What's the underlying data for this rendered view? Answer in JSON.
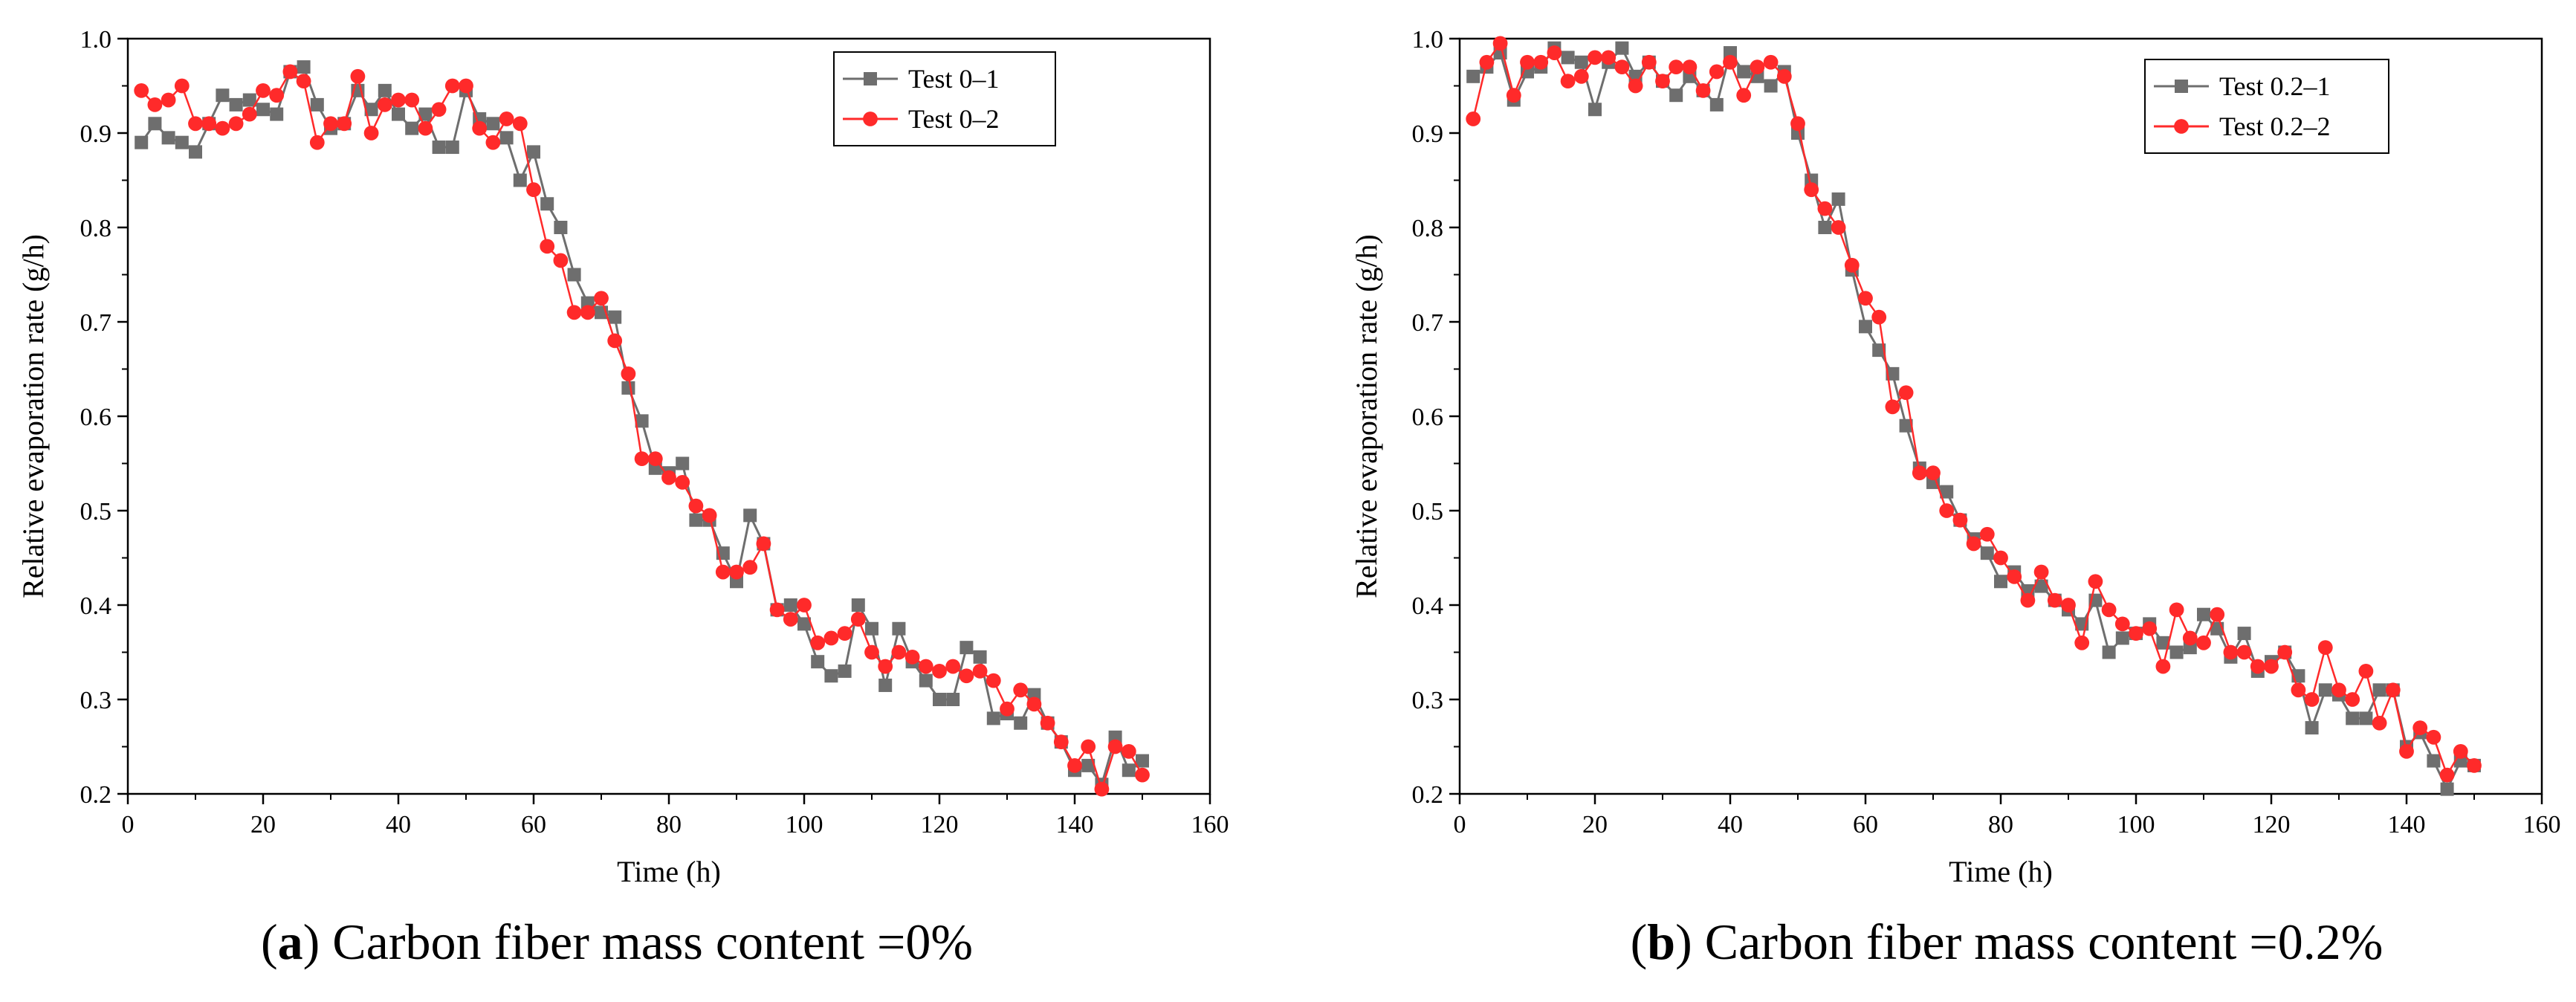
{
  "colors": {
    "series_gray": "#6e6e6e",
    "series_red": "#ff2a2a",
    "axis": "#000000"
  },
  "chart_data": [
    {
      "type": "line",
      "panel_letter": "a",
      "caption_open": "(",
      "caption_close": ") Carbon fiber mass content =0%",
      "xlabel": "Time (h)",
      "ylabel": "Relative evaporation rate (g/h)",
      "xlim": [
        0,
        160
      ],
      "ylim": [
        0.2,
        1.0
      ],
      "xticks": [
        "0",
        "20",
        "40",
        "60",
        "80",
        "100",
        "120",
        "140",
        "160"
      ],
      "yticks": [
        "0.2",
        "0.3",
        "0.4",
        "0.5",
        "0.6",
        "0.7",
        "0.8",
        "0.9",
        "1.0"
      ],
      "legend_position": "top-right",
      "series": [
        {
          "name": "Test 0–1",
          "marker": "square",
          "color": "#6e6e6e",
          "x": [
            2,
            4,
            6,
            8,
            10,
            12,
            14,
            16,
            18,
            20,
            22,
            24,
            26,
            28,
            30,
            32,
            34,
            36,
            38,
            40,
            42,
            44,
            46,
            48,
            50,
            52,
            54,
            56,
            58,
            60,
            62,
            64,
            66,
            68,
            70,
            72,
            74,
            76,
            78,
            80,
            82,
            84,
            86,
            88,
            90,
            92,
            94,
            96,
            98,
            100,
            102,
            104,
            106,
            108,
            110,
            112,
            114,
            116,
            118,
            120,
            122,
            124,
            126,
            128,
            130,
            132,
            134,
            136,
            138,
            140,
            142,
            144,
            146,
            148,
            150
          ],
          "y": [
            0.89,
            0.91,
            0.895,
            0.89,
            0.88,
            0.91,
            0.94,
            0.93,
            0.935,
            0.925,
            0.92,
            0.965,
            0.97,
            0.93,
            0.905,
            0.91,
            0.945,
            0.925,
            0.945,
            0.92,
            0.905,
            0.92,
            0.885,
            0.885,
            0.945,
            0.915,
            0.91,
            0.895,
            0.85,
            0.88,
            0.825,
            0.8,
            0.75,
            0.72,
            0.71,
            0.705,
            0.63,
            0.595,
            0.545,
            0.54,
            0.55,
            0.49,
            0.49,
            0.455,
            0.425,
            0.495,
            0.465,
            0.395,
            0.4,
            0.38,
            0.34,
            0.325,
            0.33,
            0.4,
            0.375,
            0.315,
            0.375,
            0.34,
            0.32,
            0.3,
            0.3,
            0.355,
            0.345,
            0.28,
            0.285,
            0.275,
            0.305,
            0.275,
            0.255,
            0.225,
            0.23,
            0.21,
            0.26,
            0.225,
            0.235
          ]
        },
        {
          "name": "Test 0–2",
          "marker": "circle",
          "color": "#ff2a2a",
          "x": [
            2,
            4,
            6,
            8,
            10,
            12,
            14,
            16,
            18,
            20,
            22,
            24,
            26,
            28,
            30,
            32,
            34,
            36,
            38,
            40,
            42,
            44,
            46,
            48,
            50,
            52,
            54,
            56,
            58,
            60,
            62,
            64,
            66,
            68,
            70,
            72,
            74,
            76,
            78,
            80,
            82,
            84,
            86,
            88,
            90,
            92,
            94,
            96,
            98,
            100,
            102,
            104,
            106,
            108,
            110,
            112,
            114,
            116,
            118,
            120,
            122,
            124,
            126,
            128,
            130,
            132,
            134,
            136,
            138,
            140,
            142,
            144,
            146,
            148,
            150
          ],
          "y": [
            0.945,
            0.93,
            0.935,
            0.95,
            0.91,
            0.91,
            0.905,
            0.91,
            0.92,
            0.945,
            0.94,
            0.965,
            0.955,
            0.89,
            0.91,
            0.91,
            0.96,
            0.9,
            0.93,
            0.935,
            0.935,
            0.905,
            0.925,
            0.95,
            0.95,
            0.905,
            0.89,
            0.915,
            0.91,
            0.84,
            0.78,
            0.765,
            0.71,
            0.71,
            0.725,
            0.68,
            0.645,
            0.555,
            0.555,
            0.535,
            0.53,
            0.505,
            0.495,
            0.435,
            0.435,
            0.44,
            0.465,
            0.395,
            0.385,
            0.4,
            0.36,
            0.365,
            0.37,
            0.385,
            0.35,
            0.335,
            0.35,
            0.345,
            0.335,
            0.33,
            0.335,
            0.325,
            0.33,
            0.32,
            0.29,
            0.31,
            0.295,
            0.275,
            0.255,
            0.23,
            0.25,
            0.205,
            0.25,
            0.245,
            0.22
          ]
        }
      ]
    },
    {
      "type": "line",
      "panel_letter": "b",
      "caption_open": "(",
      "caption_close": ") Carbon fiber mass content =0.2%",
      "xlabel": "Time (h)",
      "ylabel": "Relative evaporation rate (g/h)",
      "xlim": [
        0,
        160
      ],
      "ylim": [
        0.2,
        1.0
      ],
      "xticks": [
        "0",
        "20",
        "40",
        "60",
        "80",
        "100",
        "120",
        "140",
        "160"
      ],
      "yticks": [
        "0.2",
        "0.3",
        "0.4",
        "0.5",
        "0.6",
        "0.7",
        "0.8",
        "0.9",
        "1.0"
      ],
      "legend_position": "top-right",
      "series": [
        {
          "name": "Test 0.2–1",
          "marker": "square",
          "color": "#6e6e6e",
          "x": [
            2,
            4,
            6,
            8,
            10,
            12,
            14,
            16,
            18,
            20,
            22,
            24,
            26,
            28,
            30,
            32,
            34,
            36,
            38,
            40,
            42,
            44,
            46,
            48,
            50,
            52,
            54,
            56,
            58,
            60,
            62,
            64,
            66,
            68,
            70,
            72,
            74,
            76,
            78,
            80,
            82,
            84,
            86,
            88,
            90,
            92,
            94,
            96,
            98,
            100,
            102,
            104,
            106,
            108,
            110,
            112,
            114,
            116,
            118,
            120,
            122,
            124,
            126,
            128,
            130,
            132,
            134,
            136,
            138,
            140,
            142,
            144,
            146,
            148,
            150
          ],
          "y": [
            0.96,
            0.97,
            0.985,
            0.935,
            0.965,
            0.97,
            0.99,
            0.98,
            0.975,
            0.925,
            0.975,
            0.99,
            0.96,
            0.975,
            0.955,
            0.94,
            0.96,
            0.945,
            0.93,
            0.985,
            0.965,
            0.96,
            0.95,
            0.965,
            0.9,
            0.85,
            0.8,
            0.83,
            0.755,
            0.695,
            0.67,
            0.645,
            0.59,
            0.545,
            0.53,
            0.52,
            0.49,
            0.47,
            0.455,
            0.425,
            0.435,
            0.415,
            0.42,
            0.405,
            0.395,
            0.38,
            0.405,
            0.35,
            0.365,
            0.37,
            0.38,
            0.36,
            0.35,
            0.355,
            0.39,
            0.375,
            0.345,
            0.37,
            0.33,
            0.34,
            0.35,
            0.325,
            0.27,
            0.31,
            0.305,
            0.28,
            0.28,
            0.31,
            0.31,
            0.25,
            0.265,
            0.235,
            0.205,
            0.235,
            0.23
          ]
        },
        {
          "name": "Test 0.2–2",
          "marker": "circle",
          "color": "#ff2a2a",
          "x": [
            2,
            4,
            6,
            8,
            10,
            12,
            14,
            16,
            18,
            20,
            22,
            24,
            26,
            28,
            30,
            32,
            34,
            36,
            38,
            40,
            42,
            44,
            46,
            48,
            50,
            52,
            54,
            56,
            58,
            60,
            62,
            64,
            66,
            68,
            70,
            72,
            74,
            76,
            78,
            80,
            82,
            84,
            86,
            88,
            90,
            92,
            94,
            96,
            98,
            100,
            102,
            104,
            106,
            108,
            110,
            112,
            114,
            116,
            118,
            120,
            122,
            124,
            126,
            128,
            130,
            132,
            134,
            136,
            138,
            140,
            142,
            144,
            146,
            148,
            150
          ],
          "y": [
            0.915,
            0.975,
            0.995,
            0.94,
            0.975,
            0.975,
            0.985,
            0.955,
            0.96,
            0.98,
            0.98,
            0.97,
            0.95,
            0.975,
            0.955,
            0.97,
            0.97,
            0.945,
            0.965,
            0.975,
            0.94,
            0.97,
            0.975,
            0.96,
            0.91,
            0.84,
            0.82,
            0.8,
            0.76,
            0.725,
            0.705,
            0.61,
            0.625,
            0.54,
            0.54,
            0.5,
            0.49,
            0.465,
            0.475,
            0.45,
            0.43,
            0.405,
            0.435,
            0.405,
            0.4,
            0.36,
            0.425,
            0.395,
            0.38,
            0.37,
            0.375,
            0.335,
            0.395,
            0.365,
            0.36,
            0.39,
            0.35,
            0.35,
            0.335,
            0.335,
            0.35,
            0.31,
            0.3,
            0.355,
            0.31,
            0.3,
            0.33,
            0.275,
            0.31,
            0.245,
            0.27,
            0.26,
            0.22,
            0.245,
            0.23
          ]
        }
      ]
    }
  ]
}
